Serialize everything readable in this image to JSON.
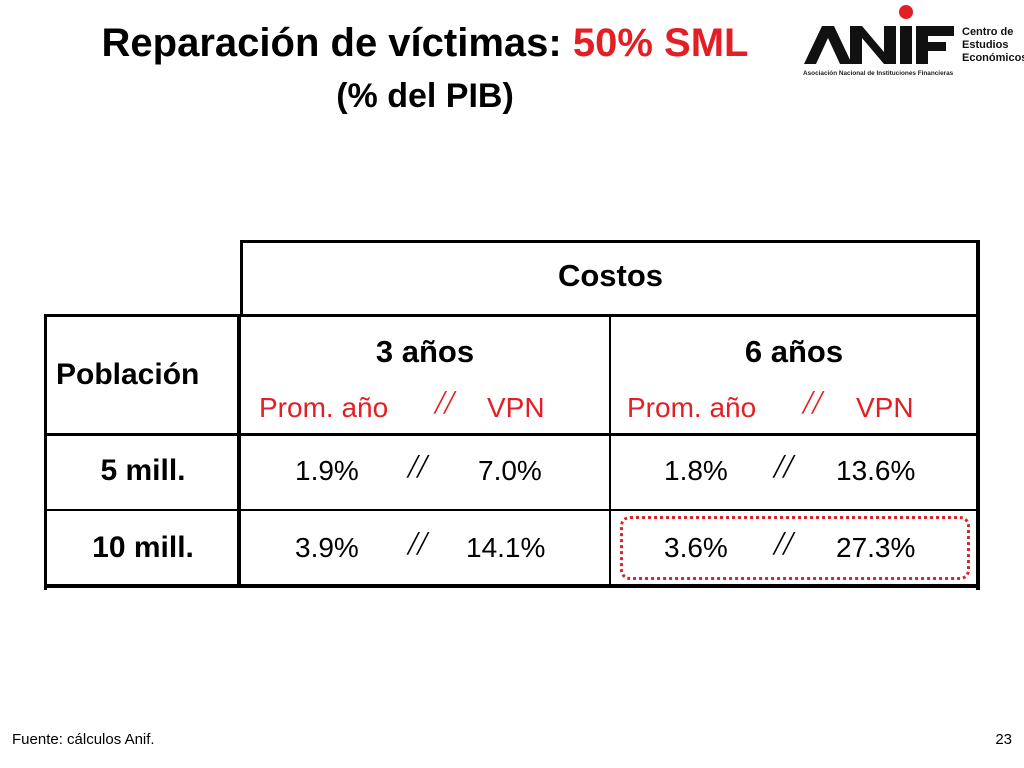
{
  "title": {
    "prefix": "Reparación de víctimas: ",
    "highlight": "50% SML",
    "subtitle": "(% del PIB)"
  },
  "logo": {
    "wordmark": "ANIF",
    "side_lines": [
      "Centro de",
      "Estudios",
      "Económicos"
    ],
    "org_name": "Asociación Nacional de Instituciones Financieras"
  },
  "table": {
    "header_costos": "Costos",
    "header_poblacion": "Población",
    "cols": [
      {
        "label": "3 años",
        "sub_left": "Prom. año",
        "sep": "//",
        "sub_right": "VPN"
      },
      {
        "label": "6 años",
        "sub_left": "Prom. año",
        "sep": "//",
        "sub_right": "VPN"
      }
    ],
    "rows": [
      {
        "label": "5 mill.",
        "v1a": "1.9%",
        "v1b": "7.0%",
        "v2a": "1.8%",
        "v2b": "13.6%",
        "sep": "//"
      },
      {
        "label": "10 mill.",
        "v1a": "3.9%",
        "v1b": "14.1%",
        "v2a": "3.6%",
        "v2b": "27.3%",
        "sep": "//"
      }
    ]
  },
  "footer": {
    "source": "Fuente: cálculos Anif.",
    "page": "23"
  },
  "colors": {
    "accent_red": "#e31e24",
    "highlight_box": "#d9262a"
  }
}
